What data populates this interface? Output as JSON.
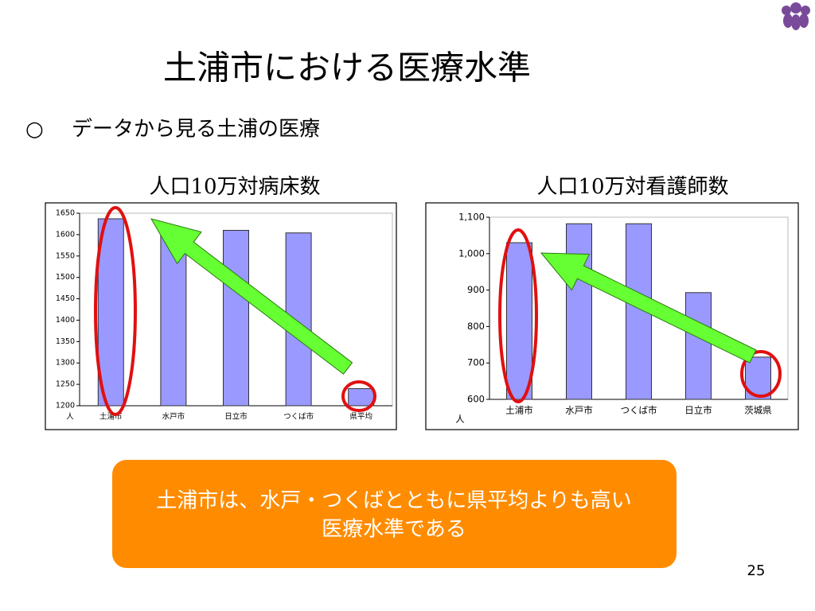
{
  "slide": {
    "title": "土浦市における医療水準",
    "bullet": "○",
    "subtitle": "データから見る土浦の医療",
    "callout": [
      "土浦市は、水戸・つくばとともに県平均よりも高い",
      "医療水準である"
    ],
    "page_number": "25"
  },
  "chart_data": [
    {
      "type": "bar",
      "title": "人口10万対病床数",
      "unit_label": "人",
      "categories": [
        "土浦市",
        "水戸市",
        "日立市",
        "つくば市",
        "県平均"
      ],
      "values": [
        1637,
        1612,
        1610,
        1604,
        1240
      ],
      "color": "#9999ff",
      "ylim": [
        1200,
        1650
      ],
      "yticks": [
        1200,
        1250,
        1300,
        1350,
        1400,
        1450,
        1500,
        1550,
        1600,
        1650
      ]
    },
    {
      "type": "bar",
      "title": "人口10万対看護師数",
      "unit_label": "人",
      "categories": [
        "土浦市",
        "水戸市",
        "つくば市",
        "日立市",
        "茨城県"
      ],
      "values": [
        1030,
        1082,
        1082,
        893,
        716
      ],
      "color": "#9999ff",
      "ylim": [
        600,
        1100
      ],
      "yticks": [
        600,
        700,
        800,
        900,
        {
          "value": 1000,
          "label": "1,000"
        },
        {
          "value": 1100,
          "label": "1,100"
        }
      ]
    }
  ]
}
